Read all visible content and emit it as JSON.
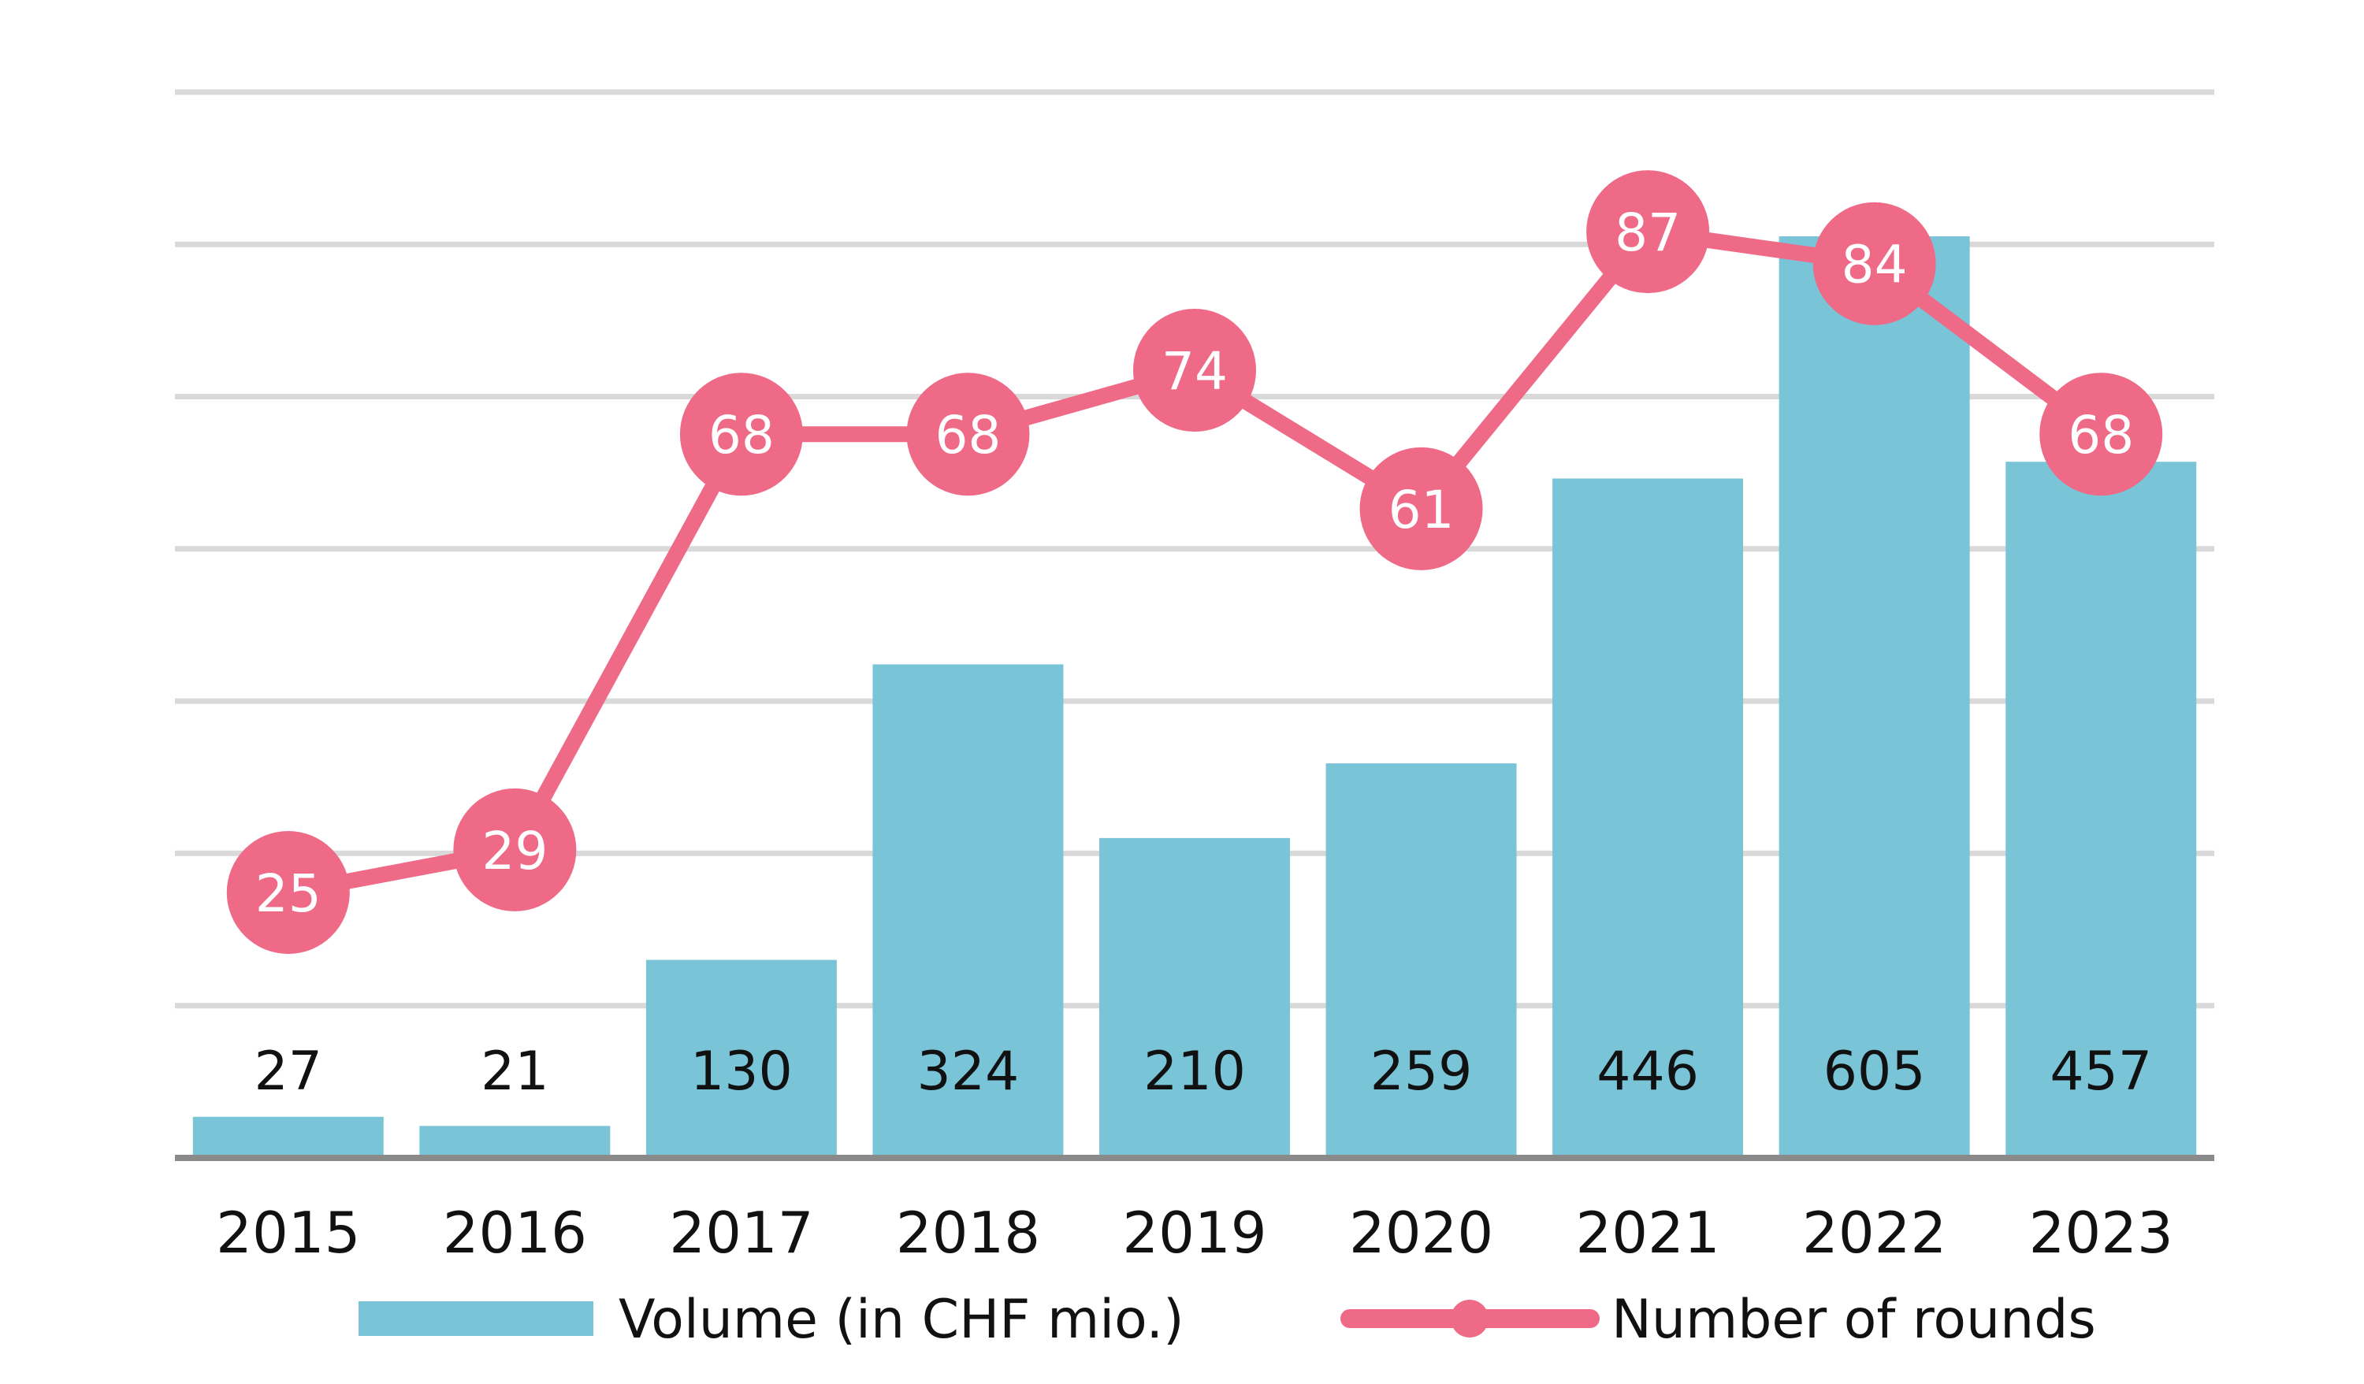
{
  "chart_data": {
    "type": "bar",
    "title": "",
    "xlabel": "",
    "ylabel": "",
    "categories": [
      "2015",
      "2016",
      "2017",
      "2018",
      "2019",
      "2020",
      "2021",
      "2022",
      "2023"
    ],
    "series": [
      {
        "name": "Volume (in CHF mio.)",
        "type": "bar",
        "color": "#7ac4d8",
        "values": [
          27,
          21,
          130,
          324,
          210,
          259,
          446,
          605,
          457
        ]
      },
      {
        "name": "Number of rounds",
        "type": "line",
        "color": "#ee6a87",
        "values": [
          25,
          29,
          68,
          68,
          74,
          61,
          87,
          84,
          68
        ]
      }
    ],
    "grid": true,
    "y_axis_visible": false,
    "legend": {
      "position": "bottom",
      "entries": [
        "Volume (in CHF mio.)",
        "Number of rounds"
      ]
    }
  }
}
